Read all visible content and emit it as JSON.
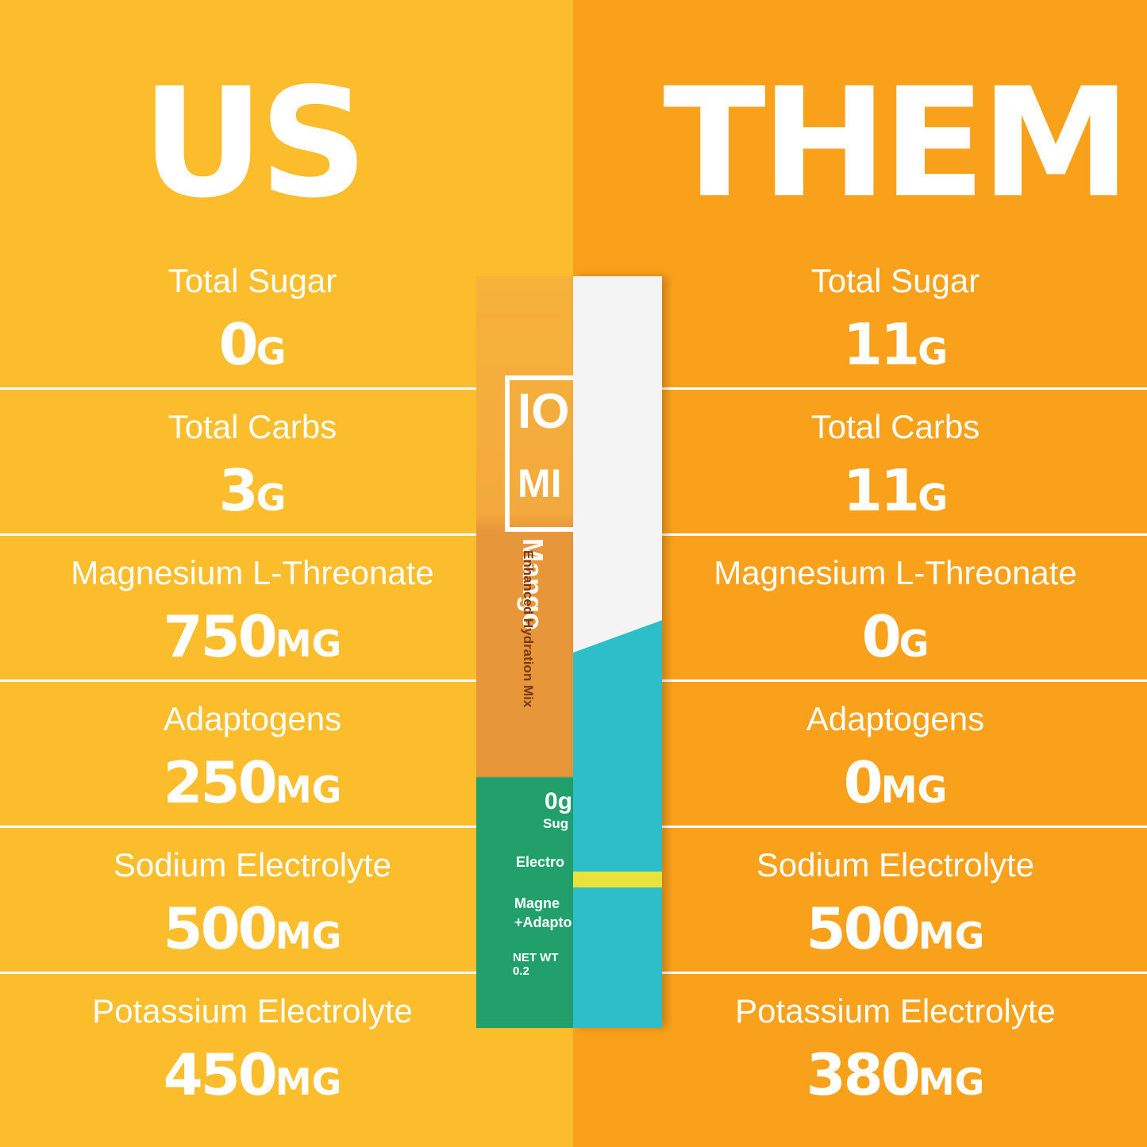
{
  "us": {
    "title": "US",
    "rows": [
      {
        "label": "Total Sugar",
        "amount": "0",
        "unit": "G"
      },
      {
        "label": "Total Carbs",
        "amount": "3",
        "unit": "G"
      },
      {
        "label": "Magnesium L-Threonate",
        "amount": "750",
        "unit": "MG"
      },
      {
        "label": "Adaptogens",
        "amount": "250",
        "unit": "MG"
      },
      {
        "label": "Sodium Electrolyte",
        "amount": "500",
        "unit": "MG"
      },
      {
        "label": "Potassium Electrolyte",
        "amount": "450",
        "unit": "MG"
      }
    ]
  },
  "them": {
    "title": "THEM",
    "rows": [
      {
        "label": "Total Sugar",
        "amount": "11",
        "unit": "G"
      },
      {
        "label": "Total Carbs",
        "amount": "11",
        "unit": "G"
      },
      {
        "label": "Magnesium L-Threonate",
        "amount": "0",
        "unit": "G"
      },
      {
        "label": "Adaptogens",
        "amount": "0",
        "unit": "MG"
      },
      {
        "label": "Sodium Electrolyte",
        "amount": "500",
        "unit": "MG"
      },
      {
        "label": "Potassium Electrolyte",
        "amount": "380",
        "unit": "MG"
      }
    ]
  },
  "packet": {
    "logo_top": "IO",
    "logo_bottom": "MI",
    "flavor": "Mango",
    "subtitle": "Enhanced Hydration Mix",
    "badge_amount": "0g",
    "badge_label": "Sug",
    "feature_1": "Electro",
    "feature_2a": "Magne",
    "feature_2b": "+Adapto",
    "net_wt": "NET WT 0.2"
  }
}
